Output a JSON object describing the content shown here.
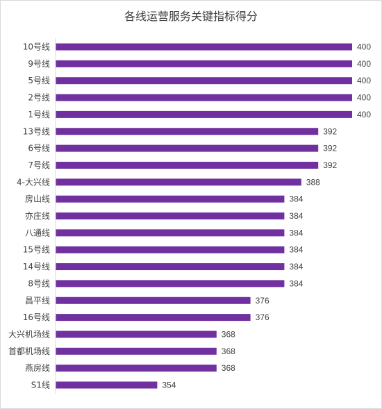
{
  "chart_data": {
    "type": "bar",
    "orientation": "horizontal",
    "title": "各线运营服务关键指标得分",
    "categories": [
      "10号线",
      "9号线",
      "5号线",
      "2号线",
      "1号线",
      "13号线",
      "6号线",
      "7号线",
      "4-大兴线",
      "房山线",
      "亦庄线",
      "八通线",
      "15号线",
      "14号线",
      "8号线",
      "昌平线",
      "16号线",
      "大兴机场线",
      "首都机场线",
      "燕房线",
      "S1线"
    ],
    "values": [
      400,
      400,
      400,
      400,
      400,
      392,
      392,
      392,
      388,
      384,
      384,
      384,
      384,
      384,
      384,
      376,
      376,
      368,
      368,
      368,
      354
    ],
    "xlim": [
      330,
      400
    ],
    "bar_color": "#7030a0",
    "grid": false,
    "data_labels": true
  }
}
